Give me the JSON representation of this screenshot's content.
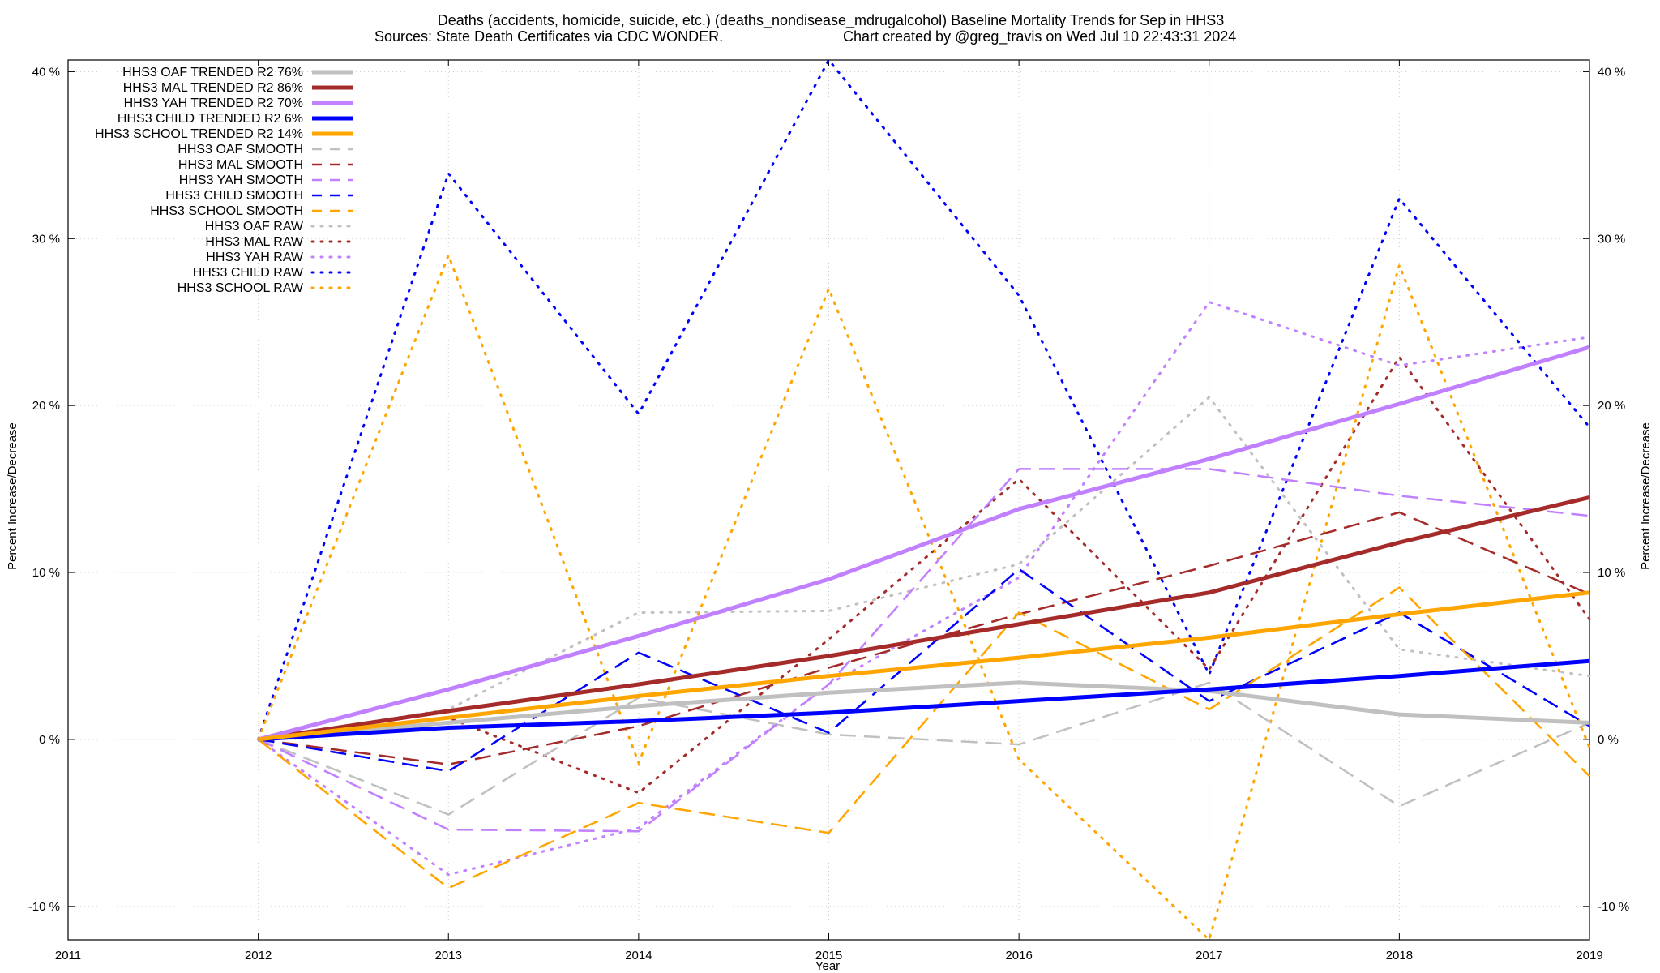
{
  "chart_data": {
    "type": "line",
    "title_line1": "Deaths (accidents, homicide, suicide, etc.) (deaths_nondisease_mdrugalcohol)  Baseline Mortality Trends for Sep in HHS3",
    "title_line2_left": "Sources: State Death Certificates via CDC WONDER.",
    "title_line2_right": "Chart created by @greg_travis on Wed Jul 10 22:43:31 2024",
    "xlabel": "Year",
    "ylabel_left": "Percent Increase/Decrease",
    "ylabel_right": "Percent Increase/Decrease",
    "xlim": [
      2011,
      2019
    ],
    "ylim": [
      -12,
      40.7
    ],
    "x_ticks": [
      2011,
      2012,
      2013,
      2014,
      2015,
      2016,
      2017,
      2018,
      2019
    ],
    "x_tick_labels": [
      "2011",
      "2012",
      "2013",
      "2014",
      "2015",
      "2016",
      "2017",
      "2018",
      "2019"
    ],
    "y_ticks": [
      -10,
      0,
      10,
      20,
      30,
      40
    ],
    "y_tick_labels": [
      "-10 %",
      "0 %",
      "10 %",
      "20 %",
      "30 %",
      "40 %"
    ],
    "grid": true,
    "legend_position": "top-left",
    "colors": {
      "OAF": "#c0c0c0",
      "MAL": "#a52a2a",
      "YAH": "#c080ff",
      "CHILD": "#0000ff",
      "SCHOOL": "#ffa500"
    },
    "series": [
      {
        "name": "HHS3 OAF TRENDED R2  76%",
        "group": "OAF",
        "style": "trended",
        "x": [
          2012,
          2013,
          2014,
          2015,
          2016,
          2017,
          2018,
          2019
        ],
        "values": [
          0,
          1.0,
          2.0,
          2.8,
          3.4,
          2.9,
          1.5,
          1.0
        ]
      },
      {
        "name": "HHS3 MAL TRENDED R2  86%",
        "group": "MAL",
        "style": "trended",
        "x": [
          2012,
          2013,
          2014,
          2015,
          2016,
          2017,
          2018,
          2019
        ],
        "values": [
          0,
          1.7,
          3.3,
          5.0,
          6.9,
          8.8,
          11.8,
          14.5
        ]
      },
      {
        "name": "HHS3 YAH TRENDED R2  70%",
        "group": "YAH",
        "style": "trended",
        "x": [
          2012,
          2013,
          2014,
          2015,
          2016,
          2017,
          2018,
          2019
        ],
        "values": [
          0,
          3.0,
          6.2,
          9.6,
          13.8,
          16.8,
          20.1,
          23.5
        ]
      },
      {
        "name": "HHS3 CHILD TRENDED R2   6%",
        "group": "CHILD",
        "style": "trended",
        "x": [
          2012,
          2013,
          2014,
          2015,
          2016,
          2017,
          2018,
          2019
        ],
        "values": [
          0,
          0.7,
          1.1,
          1.6,
          2.3,
          3.0,
          3.8,
          4.7
        ]
      },
      {
        "name": "HHS3 SCHOOL TRENDED R2  14%",
        "group": "SCHOOL",
        "style": "trended",
        "x": [
          2012,
          2013,
          2014,
          2015,
          2016,
          2017,
          2018,
          2019
        ],
        "values": [
          0,
          1.3,
          2.6,
          3.8,
          4.9,
          6.1,
          7.5,
          8.8
        ]
      },
      {
        "name": "HHS3 OAF SMOOTH",
        "group": "OAF",
        "style": "smooth",
        "x": [
          2012,
          2013,
          2014,
          2015,
          2016,
          2017,
          2018,
          2019
        ],
        "values": [
          0,
          -4.5,
          2.5,
          0.3,
          -0.3,
          3.4,
          -4.0,
          1.0
        ]
      },
      {
        "name": "HHS3 MAL SMOOTH",
        "group": "MAL",
        "style": "smooth",
        "x": [
          2012,
          2013,
          2014,
          2015,
          2016,
          2017,
          2018,
          2019
        ],
        "values": [
          0,
          -1.5,
          0.8,
          4.3,
          7.5,
          10.4,
          13.6,
          8.7
        ]
      },
      {
        "name": "HHS3 YAH SMOOTH",
        "group": "YAH",
        "style": "smooth",
        "x": [
          2012,
          2013,
          2014,
          2015,
          2016,
          2017,
          2018,
          2019
        ],
        "values": [
          0,
          -5.4,
          -5.5,
          3.3,
          16.2,
          16.2,
          14.6,
          13.4
        ]
      },
      {
        "name": "HHS3 CHILD SMOOTH",
        "group": "CHILD",
        "style": "smooth",
        "x": [
          2012,
          2013,
          2014,
          2015,
          2016,
          2017,
          2018,
          2019
        ],
        "values": [
          0,
          -1.9,
          5.2,
          0.4,
          10.2,
          2.3,
          7.6,
          0.8
        ]
      },
      {
        "name": "HHS3 SCHOOL SMOOTH",
        "group": "SCHOOL",
        "style": "smooth",
        "x": [
          2012,
          2013,
          2014,
          2015,
          2016,
          2017,
          2018,
          2019
        ],
        "values": [
          0,
          -8.9,
          -3.8,
          -5.6,
          7.6,
          1.8,
          9.1,
          -2.2
        ]
      },
      {
        "name": "HHS3 OAF RAW",
        "group": "OAF",
        "style": "raw",
        "x": [
          2012,
          2013,
          2014,
          2015,
          2016,
          2017,
          2018,
          2019
        ],
        "values": [
          0,
          1.8,
          7.6,
          7.7,
          10.5,
          20.5,
          5.4,
          3.8
        ]
      },
      {
        "name": "HHS3 MAL RAW",
        "group": "MAL",
        "style": "raw",
        "x": [
          2012,
          2013,
          2014,
          2015,
          2016,
          2017,
          2018,
          2019
        ],
        "values": [
          0,
          1.3,
          -3.2,
          6.0,
          15.6,
          4.2,
          22.9,
          7.2
        ]
      },
      {
        "name": "HHS3 YAH RAW",
        "group": "YAH",
        "style": "raw",
        "x": [
          2012,
          2013,
          2014,
          2015,
          2016,
          2017,
          2018,
          2019
        ],
        "values": [
          0,
          -8.1,
          -5.3,
          3.3,
          9.7,
          26.2,
          22.4,
          24.1
        ]
      },
      {
        "name": "HHS3 CHILD RAW",
        "group": "CHILD",
        "style": "raw",
        "x": [
          2012,
          2013,
          2014,
          2015,
          2016,
          2017,
          2018,
          2019
        ],
        "values": [
          0,
          33.9,
          19.5,
          40.7,
          26.6,
          3.9,
          32.4,
          18.7
        ]
      },
      {
        "name": "HHS3 SCHOOL RAW",
        "group": "SCHOOL",
        "style": "raw",
        "x": [
          2012,
          2013,
          2014,
          2015,
          2016,
          2017,
          2018,
          2019
        ],
        "values": [
          0,
          29.0,
          -1.4,
          27.0,
          -1.2,
          -12.0,
          28.4,
          -0.5
        ]
      }
    ]
  }
}
